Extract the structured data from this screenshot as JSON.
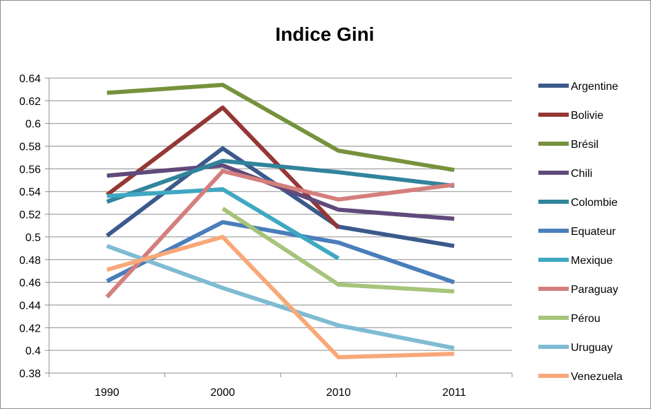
{
  "chart_data": {
    "type": "line",
    "title": "Indice Gini",
    "xlabel": "",
    "ylabel": "",
    "categories": [
      "1990",
      "2000",
      "2010",
      "2011"
    ],
    "ylim": [
      0.38,
      0.64
    ],
    "yticks": [
      "0.38",
      "0.4",
      "0.42",
      "0.44",
      "0.46",
      "0.48",
      "0.5",
      "0.52",
      "0.54",
      "0.56",
      "0.58",
      "0.6",
      "0.62",
      "0.64"
    ],
    "grid": true,
    "legend_position": "right",
    "series": [
      {
        "name": "Argentine",
        "color": "#3b5a8c",
        "values": [
          0.501,
          0.578,
          0.509,
          0.492
        ]
      },
      {
        "name": "Bolivie",
        "color": "#953735",
        "values": [
          0.537,
          0.614,
          0.508,
          null
        ]
      },
      {
        "name": "Brésil",
        "color": "#76923c",
        "values": [
          0.627,
          0.634,
          0.576,
          0.559
        ]
      },
      {
        "name": "Chili",
        "color": "#604a7b",
        "values": [
          0.554,
          0.563,
          0.524,
          0.516
        ]
      },
      {
        "name": "Colombie",
        "color": "#31849b",
        "values": [
          0.531,
          0.567,
          0.557,
          0.545
        ]
      },
      {
        "name": "Equateur",
        "color": "#4a7ebb",
        "values": [
          0.461,
          0.513,
          0.495,
          0.46
        ]
      },
      {
        "name": "Mexique",
        "color": "#3fa8c2",
        "values": [
          0.536,
          0.542,
          0.481,
          null
        ]
      },
      {
        "name": "Paraguay",
        "color": "#d47f7d",
        "values": [
          0.447,
          0.558,
          0.533,
          0.546
        ]
      },
      {
        "name": "Pérou",
        "color": "#a6c47a",
        "values": [
          null,
          0.525,
          0.458,
          0.452
        ]
      },
      {
        "name": "Uruguay",
        "color": "#7fbbd3",
        "values": [
          0.492,
          0.455,
          0.422,
          0.402
        ]
      },
      {
        "name": "Venezuela",
        "color": "#f8a878",
        "values": [
          0.471,
          0.5,
          0.394,
          0.397
        ]
      }
    ]
  }
}
